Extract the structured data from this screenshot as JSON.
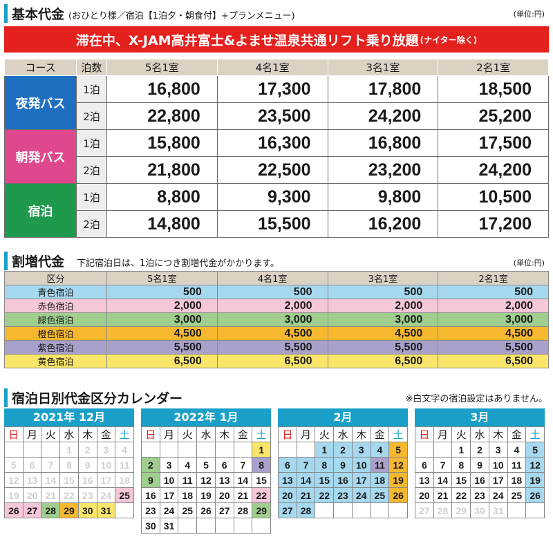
{
  "section1": {
    "title": "基本代金",
    "subtitle": "(おひとり様／宿泊【1泊夕・朝食付】+プランメニュー)",
    "unit": "(単位:円)"
  },
  "banner": {
    "text": "滞在中、X-JAM高井富士&よませ温泉共通リフト乗り放題",
    "note": "(ナイター除く)"
  },
  "base_table": {
    "headers": [
      "コース",
      "泊数",
      "5名1室",
      "4名1室",
      "3名1室",
      "2名1室"
    ],
    "courses": [
      {
        "name": "夜発バス",
        "color": "#1f6fc1",
        "rows": [
          {
            "nights": "1泊",
            "prices": [
              "16,800",
              "17,300",
              "17,800",
              "18,500"
            ]
          },
          {
            "nights": "2泊",
            "prices": [
              "22,800",
              "23,500",
              "24,200",
              "25,200"
            ]
          }
        ]
      },
      {
        "name": "朝発バス",
        "color": "#e0488e",
        "rows": [
          {
            "nights": "1泊",
            "prices": [
              "15,800",
              "16,300",
              "16,800",
              "17,500"
            ]
          },
          {
            "nights": "2泊",
            "prices": [
              "21,800",
              "22,500",
              "23,200",
              "24,200"
            ]
          }
        ]
      },
      {
        "name": "宿泊",
        "color": "#1f9a4c",
        "rows": [
          {
            "nights": "1泊",
            "prices": [
              "8,800",
              "9,300",
              "9,800",
              "10,500"
            ]
          },
          {
            "nights": "2泊",
            "prices": [
              "14,800",
              "15,500",
              "16,200",
              "17,200"
            ]
          }
        ]
      }
    ]
  },
  "section2": {
    "title": "割増代金",
    "note": "下記宿泊日は、1泊につき割増代金がかかります。",
    "unit": "(単位:円)"
  },
  "surcharge_table": {
    "headers": [
      "区分",
      "5名1室",
      "4名1室",
      "3名1室",
      "2名1室"
    ],
    "rows": [
      {
        "label": "青色宿泊",
        "color": "#a6d8ef",
        "values": [
          "500",
          "500",
          "500",
          "500"
        ]
      },
      {
        "label": "赤色宿泊",
        "color": "#f6c7d8",
        "values": [
          "2,000",
          "2,000",
          "2,000",
          "2,000"
        ]
      },
      {
        "label": "緑色宿泊",
        "color": "#9fce8e",
        "values": [
          "3,000",
          "3,000",
          "3,000",
          "3,000"
        ]
      },
      {
        "label": "橙色宿泊",
        "color": "#f6b82f",
        "values": [
          "4,500",
          "4,500",
          "4,500",
          "4,500"
        ]
      },
      {
        "label": "紫色宿泊",
        "color": "#a9a0cc",
        "values": [
          "5,500",
          "5,500",
          "5,500",
          "5,500"
        ]
      },
      {
        "label": "黄色宿泊",
        "color": "#f8e56a",
        "values": [
          "6,500",
          "6,500",
          "6,500",
          "6,500"
        ]
      }
    ]
  },
  "section3": {
    "title": "宿泊日別代金区分カレンダー",
    "note": "※白文字の宿泊設定はありません。"
  },
  "weekdays": [
    "日",
    "月",
    "火",
    "水",
    "木",
    "金",
    "土"
  ],
  "calendars": [
    {
      "title": "2021年 12月",
      "cells": [
        [
          "",
          ""
        ],
        [
          "",
          ""
        ],
        [
          "",
          ""
        ],
        [
          "1",
          "white"
        ],
        [
          "2",
          "white"
        ],
        [
          "3",
          "white"
        ],
        [
          "4",
          "white"
        ],
        [
          "5",
          "white"
        ],
        [
          "6",
          "white"
        ],
        [
          "7",
          "white"
        ],
        [
          "8",
          "white"
        ],
        [
          "9",
          "white"
        ],
        [
          "10",
          "white"
        ],
        [
          "11",
          "white"
        ],
        [
          "12",
          "white"
        ],
        [
          "13",
          "white"
        ],
        [
          "14",
          "white"
        ],
        [
          "15",
          "white"
        ],
        [
          "16",
          "white"
        ],
        [
          "17",
          "white"
        ],
        [
          "18",
          "white"
        ],
        [
          "19",
          "white"
        ],
        [
          "20",
          "white"
        ],
        [
          "21",
          "white"
        ],
        [
          "22",
          "white"
        ],
        [
          "23",
          "white"
        ],
        [
          "24",
          "white"
        ],
        [
          "25",
          "red"
        ],
        [
          "26",
          "red"
        ],
        [
          "27",
          "red"
        ],
        [
          "28",
          "green"
        ],
        [
          "29",
          "orange"
        ],
        [
          "30",
          "yellow"
        ],
        [
          "31",
          "yellow"
        ],
        [
          "",
          ""
        ]
      ]
    },
    {
      "title": "2022年 1月",
      "cells": [
        [
          "",
          ""
        ],
        [
          "",
          ""
        ],
        [
          "",
          ""
        ],
        [
          "",
          ""
        ],
        [
          "",
          ""
        ],
        [
          "",
          ""
        ],
        [
          "1",
          "yellow"
        ],
        [
          "2",
          "green"
        ],
        [
          "3",
          ""
        ],
        [
          "4",
          ""
        ],
        [
          "5",
          ""
        ],
        [
          "6",
          ""
        ],
        [
          "7",
          ""
        ],
        [
          "8",
          "purple"
        ],
        [
          "9",
          "green"
        ],
        [
          "10",
          ""
        ],
        [
          "11",
          ""
        ],
        [
          "12",
          ""
        ],
        [
          "13",
          ""
        ],
        [
          "14",
          ""
        ],
        [
          "15",
          ""
        ],
        [
          "16",
          ""
        ],
        [
          "17",
          ""
        ],
        [
          "18",
          ""
        ],
        [
          "19",
          ""
        ],
        [
          "20",
          ""
        ],
        [
          "21",
          ""
        ],
        [
          "22",
          "red"
        ],
        [
          "23",
          ""
        ],
        [
          "24",
          ""
        ],
        [
          "25",
          ""
        ],
        [
          "26",
          ""
        ],
        [
          "27",
          ""
        ],
        [
          "28",
          ""
        ],
        [
          "29",
          "green"
        ],
        [
          "30",
          ""
        ],
        [
          "31",
          ""
        ],
        [
          "",
          ""
        ],
        [
          "",
          ""
        ],
        [
          "",
          ""
        ],
        [
          "",
          ""
        ],
        [
          "",
          ""
        ]
      ]
    },
    {
      "title": "2月",
      "cells": [
        [
          "",
          ""
        ],
        [
          "",
          ""
        ],
        [
          "1",
          "blue"
        ],
        [
          "2",
          "blue"
        ],
        [
          "3",
          "blue"
        ],
        [
          "4",
          "blue"
        ],
        [
          "5",
          "orange"
        ],
        [
          "6",
          "blue"
        ],
        [
          "7",
          "blue"
        ],
        [
          "8",
          "blue"
        ],
        [
          "9",
          "blue"
        ],
        [
          "10",
          "blue"
        ],
        [
          "11",
          "purple"
        ],
        [
          "12",
          "orange"
        ],
        [
          "13",
          "blue"
        ],
        [
          "14",
          "blue"
        ],
        [
          "15",
          "blue"
        ],
        [
          "16",
          "blue"
        ],
        [
          "17",
          "blue"
        ],
        [
          "18",
          "blue"
        ],
        [
          "19",
          "orange"
        ],
        [
          "20",
          "blue"
        ],
        [
          "21",
          "blue"
        ],
        [
          "22",
          "blue"
        ],
        [
          "23",
          "blue"
        ],
        [
          "24",
          "blue"
        ],
        [
          "25",
          "blue"
        ],
        [
          "26",
          "orange"
        ],
        [
          "27",
          "blue"
        ],
        [
          "28",
          "blue"
        ],
        [
          "",
          ""
        ],
        [
          "",
          ""
        ],
        [
          "",
          ""
        ],
        [
          "",
          ""
        ],
        [
          "",
          ""
        ]
      ]
    },
    {
      "title": "3月",
      "cells": [
        [
          "",
          ""
        ],
        [
          "",
          ""
        ],
        [
          "1",
          ""
        ],
        [
          "2",
          ""
        ],
        [
          "3",
          ""
        ],
        [
          "4",
          ""
        ],
        [
          "5",
          "blue"
        ],
        [
          "6",
          ""
        ],
        [
          "7",
          ""
        ],
        [
          "8",
          ""
        ],
        [
          "9",
          ""
        ],
        [
          "10",
          ""
        ],
        [
          "11",
          ""
        ],
        [
          "12",
          "blue"
        ],
        [
          "13",
          ""
        ],
        [
          "14",
          ""
        ],
        [
          "15",
          ""
        ],
        [
          "16",
          ""
        ],
        [
          "17",
          ""
        ],
        [
          "18",
          ""
        ],
        [
          "19",
          "blue"
        ],
        [
          "20",
          ""
        ],
        [
          "21",
          ""
        ],
        [
          "22",
          ""
        ],
        [
          "23",
          ""
        ],
        [
          "24",
          ""
        ],
        [
          "25",
          ""
        ],
        [
          "26",
          "blue"
        ],
        [
          "27",
          "white"
        ],
        [
          "28",
          "white"
        ],
        [
          "29",
          "white"
        ],
        [
          "30",
          "white"
        ],
        [
          "31",
          "white"
        ],
        [
          "",
          ""
        ],
        [
          "",
          ""
        ]
      ]
    }
  ]
}
